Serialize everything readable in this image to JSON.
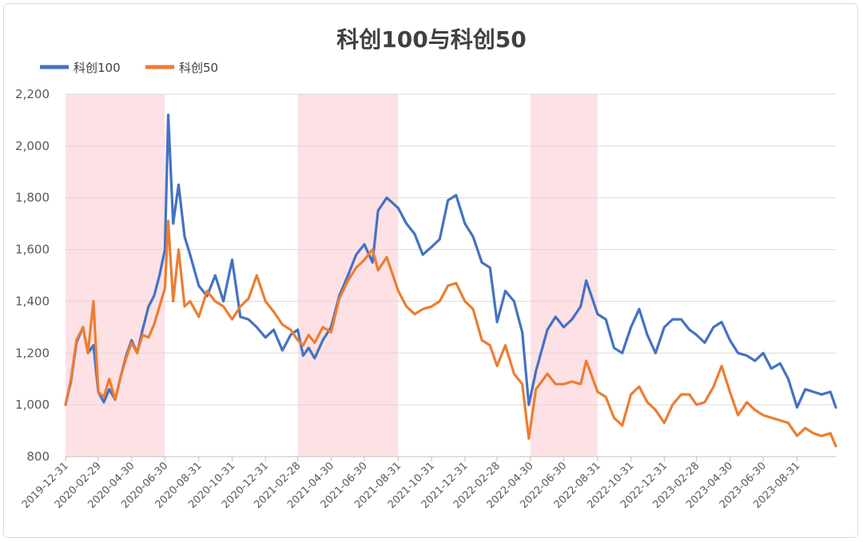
{
  "chart_data": {
    "type": "line",
    "title": "科创100与科创50",
    "xlabel": "",
    "ylabel": "",
    "ylim": [
      800,
      2200
    ],
    "y_ticks": [
      "800",
      "1,000",
      "1,200",
      "1,400",
      "1,600",
      "1,800",
      "2,000",
      "2,200"
    ],
    "x_tick_labels": [
      "2019-12-31",
      "2020-02-29",
      "2020-04-30",
      "2020-06-30",
      "2020-08-31",
      "2020-10-31",
      "2020-12-31",
      "2021-02-28",
      "2021-04-30",
      "2021-06-30",
      "2021-08-31",
      "2021-10-31",
      "2021-12-31",
      "2022-02-28",
      "2022-04-30",
      "2022-06-30",
      "2022-08-31",
      "2022-10-31",
      "2022-12-31",
      "2023-02-28",
      "2023-04-30",
      "2023-06-30",
      "2023-08-31"
    ],
    "grid": "horizontal",
    "legend_position": "top-left",
    "shaded_periods": [
      [
        "2019-12-31",
        "2020-06-30"
      ],
      [
        "2021-02-28",
        "2021-08-31"
      ],
      [
        "2022-04-30",
        "2022-08-31"
      ]
    ],
    "x": [
      "2019-12-31",
      "2020-01-10",
      "2020-01-20",
      "2020-02-01",
      "2020-02-10",
      "2020-02-20",
      "2020-02-29",
      "2020-03-10",
      "2020-03-20",
      "2020-03-31",
      "2020-04-10",
      "2020-04-20",
      "2020-04-30",
      "2020-05-10",
      "2020-05-20",
      "2020-05-31",
      "2020-06-10",
      "2020-06-20",
      "2020-06-30",
      "2020-07-06",
      "2020-07-15",
      "2020-07-25",
      "2020-08-05",
      "2020-08-15",
      "2020-08-31",
      "2020-09-15",
      "2020-09-30",
      "2020-10-15",
      "2020-10-31",
      "2020-11-15",
      "2020-11-30",
      "2020-12-15",
      "2020-12-31",
      "2021-01-15",
      "2021-01-31",
      "2021-02-15",
      "2021-02-28",
      "2021-03-10",
      "2021-03-20",
      "2021-03-31",
      "2021-04-15",
      "2021-04-30",
      "2021-05-15",
      "2021-05-31",
      "2021-06-15",
      "2021-06-30",
      "2021-07-15",
      "2021-07-25",
      "2021-08-10",
      "2021-08-31",
      "2021-09-15",
      "2021-09-30",
      "2021-10-15",
      "2021-10-31",
      "2021-11-15",
      "2021-11-30",
      "2021-12-15",
      "2021-12-31",
      "2022-01-15",
      "2022-01-31",
      "2022-02-15",
      "2022-02-28",
      "2022-03-15",
      "2022-03-31",
      "2022-04-15",
      "2022-04-27",
      "2022-05-10",
      "2022-05-31",
      "2022-06-15",
      "2022-06-30",
      "2022-07-15",
      "2022-07-31",
      "2022-08-10",
      "2022-08-31",
      "2022-09-15",
      "2022-09-30",
      "2022-10-15",
      "2022-10-31",
      "2022-11-15",
      "2022-11-30",
      "2022-12-15",
      "2022-12-31",
      "2023-01-15",
      "2023-01-31",
      "2023-02-15",
      "2023-02-28",
      "2023-03-15",
      "2023-03-31",
      "2023-04-15",
      "2023-04-30",
      "2023-05-15",
      "2023-05-31",
      "2023-06-15",
      "2023-06-30",
      "2023-07-15",
      "2023-07-31",
      "2023-08-15",
      "2023-08-31",
      "2023-09-15",
      "2023-09-30",
      "2023-10-15",
      "2023-10-31",
      "2023-11-10"
    ],
    "series": [
      {
        "name": "科创100",
        "color": "#4472C4",
        "values": [
          1000,
          1090,
          1240,
          1300,
          1200,
          1230,
          1050,
          1010,
          1060,
          1020,
          1110,
          1190,
          1250,
          1200,
          1290,
          1380,
          1420,
          1500,
          1600,
          2120,
          1700,
          1850,
          1650,
          1580,
          1460,
          1420,
          1500,
          1400,
          1560,
          1340,
          1330,
          1300,
          1260,
          1290,
          1210,
          1270,
          1290,
          1190,
          1220,
          1180,
          1250,
          1300,
          1420,
          1500,
          1580,
          1620,
          1550,
          1750,
          1800,
          1760,
          1700,
          1660,
          1580,
          1610,
          1640,
          1790,
          1810,
          1700,
          1650,
          1550,
          1530,
          1320,
          1440,
          1400,
          1280,
          1000,
          1130,
          1290,
          1340,
          1300,
          1330,
          1380,
          1480,
          1350,
          1330,
          1220,
          1200,
          1300,
          1370,
          1270,
          1200,
          1300,
          1330,
          1330,
          1290,
          1270,
          1240,
          1300,
          1320,
          1250,
          1200,
          1190,
          1170,
          1200,
          1140,
          1160,
          1100,
          990,
          1060,
          1050,
          1040,
          1050,
          990
        ]
      },
      {
        "name": "科创50",
        "color": "#ED7D31",
        "values": [
          1000,
          1100,
          1250,
          1300,
          1200,
          1400,
          1050,
          1030,
          1100,
          1020,
          1110,
          1180,
          1240,
          1200,
          1270,
          1260,
          1310,
          1380,
          1450,
          1710,
          1400,
          1600,
          1380,
          1400,
          1340,
          1440,
          1400,
          1380,
          1330,
          1380,
          1410,
          1500,
          1400,
          1360,
          1310,
          1290,
          1250,
          1230,
          1270,
          1240,
          1300,
          1280,
          1410,
          1480,
          1530,
          1560,
          1600,
          1520,
          1570,
          1440,
          1380,
          1350,
          1370,
          1380,
          1400,
          1460,
          1470,
          1400,
          1370,
          1250,
          1230,
          1150,
          1230,
          1120,
          1080,
          870,
          1060,
          1120,
          1080,
          1080,
          1090,
          1080,
          1170,
          1050,
          1030,
          950,
          920,
          1040,
          1070,
          1010,
          980,
          930,
          1000,
          1040,
          1040,
          1000,
          1010,
          1070,
          1150,
          1050,
          960,
          1010,
          980,
          960,
          950,
          940,
          930,
          880,
          910,
          890,
          880,
          890,
          840
        ]
      }
    ]
  }
}
